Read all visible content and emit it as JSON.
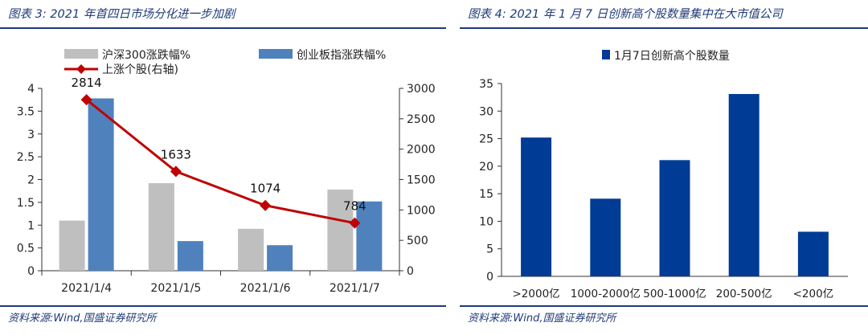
{
  "left_panel": {
    "title": "图表 3:  2021 年首四日市场分化进一步加剧",
    "source": "资料来源:Wind,国盛证券研究所"
  },
  "right_panel": {
    "title": "图表 4:  2021 年 1 月 7 日创新高个股数量集中在大市值公司",
    "source": "资料来源:Wind,国盛证券研究所"
  },
  "chart_data": [
    {
      "type": "bar",
      "categories": [
        "2021/1/4",
        "2021/1/5",
        "2021/1/6",
        "2021/1/7"
      ],
      "series": [
        {
          "name": "沪深300涨跌幅%",
          "kind": "bar",
          "axis": "left",
          "color": "#bfbfbf",
          "values": [
            1.1,
            1.92,
            0.92,
            1.78
          ]
        },
        {
          "name": "创业板指涨跌幅%",
          "kind": "bar",
          "axis": "left",
          "color": "#4f81bd",
          "values": [
            3.78,
            0.65,
            0.56,
            1.52
          ]
        },
        {
          "name": "上涨个股(右轴)",
          "kind": "line",
          "axis": "right",
          "color": "#c00000",
          "values": [
            2814,
            1633,
            1074,
            784
          ],
          "labels": [
            "2814",
            "1633",
            "1074",
            "784"
          ]
        }
      ],
      "ylim": [
        0,
        4
      ],
      "yticks": [
        "0",
        "0.5",
        "1",
        "1.5",
        "2",
        "2.5",
        "3",
        "3.5",
        "4"
      ],
      "y2lim": [
        0,
        3000
      ],
      "y2ticks": [
        "0",
        "500",
        "1000",
        "1500",
        "2000",
        "2500",
        "3000"
      ],
      "legend": "top",
      "grid": false
    },
    {
      "type": "bar",
      "categories": [
        ">2000亿",
        "1000-2000亿",
        "500-1000亿",
        "200-500亿",
        "<200亿"
      ],
      "series": [
        {
          "name": "1月7日创新高个股数量",
          "color": "#003b95",
          "values": [
            25.2,
            14.1,
            21.1,
            33.1,
            8.1
          ]
        }
      ],
      "ylim": [
        0,
        35
      ],
      "yticks": [
        "0",
        "5",
        "10",
        "15",
        "20",
        "25",
        "30",
        "35"
      ],
      "legend": "top",
      "grid": false
    }
  ]
}
